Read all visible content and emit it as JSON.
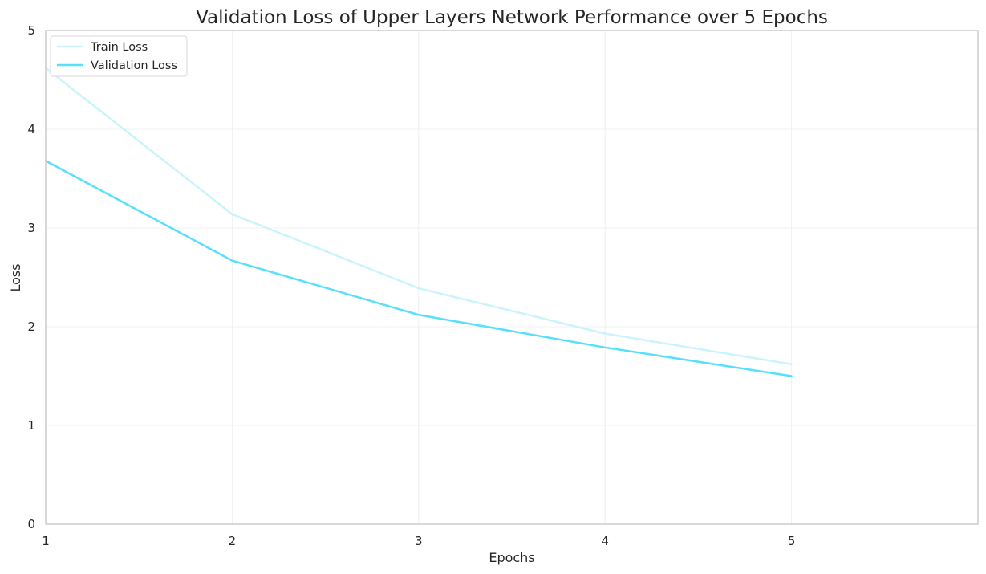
{
  "chart_data": {
    "type": "line",
    "title": "Validation Loss of Upper Layers Network Performance over 5 Epochs",
    "xlabel": "Epochs",
    "ylabel": "Loss",
    "x": [
      1,
      2,
      3,
      4,
      5
    ],
    "xlim": [
      1,
      6
    ],
    "ylim": [
      0,
      5
    ],
    "x_ticks": [
      1,
      2,
      3,
      4,
      5
    ],
    "y_ticks": [
      0,
      1,
      2,
      3,
      4,
      5
    ],
    "grid": true,
    "legend_position": "top-left",
    "series": [
      {
        "name": "Train Loss",
        "values": [
          4.62,
          3.14,
          2.39,
          1.93,
          1.62
        ],
        "color": "#c9f4fb"
      },
      {
        "name": "Validation Loss",
        "values": [
          3.68,
          2.67,
          2.12,
          1.79,
          1.5
        ],
        "color": "#58e0fb"
      }
    ]
  }
}
